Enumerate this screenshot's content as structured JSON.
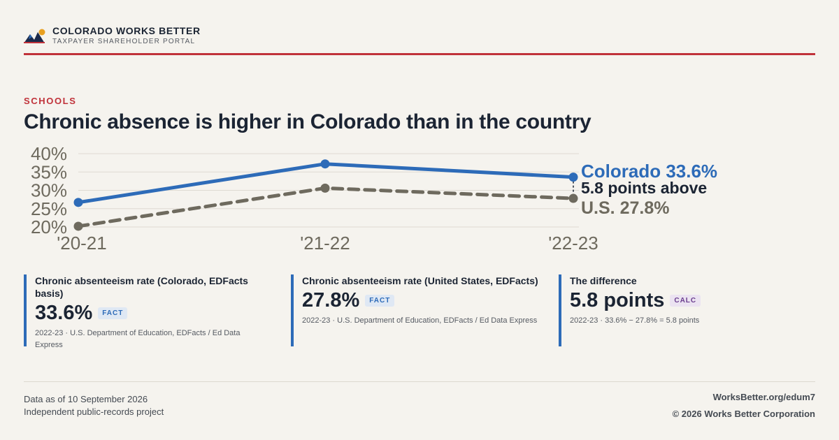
{
  "brand": {
    "name": "COLORADO WORKS BETTER",
    "subtitle": "TAXPAYER SHAREHOLDER PORTAL",
    "colors": {
      "accent_red": "#c0323a",
      "logo_navy": "#1b2a4a",
      "logo_blue": "#2d6bb8",
      "logo_sun": "#e8a020"
    }
  },
  "kicker": "SCHOOLS",
  "headline": "Chronic absence is higher in Colorado than in the country",
  "chart_data": {
    "type": "line",
    "categories": [
      "'20-21",
      "'21-22",
      "'22-23"
    ],
    "ylim": [
      20,
      40
    ],
    "y_ticks": [
      40,
      35,
      30,
      25,
      20
    ],
    "y_tick_labels": [
      "40%",
      "35%",
      "30%",
      "25%",
      "20%"
    ],
    "grid": true,
    "series": [
      {
        "name": "Colorado",
        "values": [
          26.7,
          37.2,
          33.6
        ],
        "color": "#2d6bb8",
        "style": "solid"
      },
      {
        "name": "U.S.",
        "values": [
          20.2,
          30.6,
          27.8
        ],
        "color": "#6e6a5e",
        "style": "dashed"
      }
    ],
    "end_labels": {
      "colorado": "Colorado 33.6%",
      "difference": "5.8 points above",
      "us": "U.S. 27.8%"
    }
  },
  "cards": [
    {
      "label": "Chronic absenteeism rate (Colorado, EDFacts basis)",
      "value": "33.6%",
      "badge": "FACT",
      "source": "2022-23 · U.S. Department of Education, EDFacts / Ed Data Express"
    },
    {
      "label": "Chronic absenteeism rate (United States, EDFacts)",
      "value": "27.8%",
      "badge": "FACT",
      "source": "2022-23 · U.S. Department of Education, EDFacts / Ed Data Express"
    },
    {
      "label": "The difference",
      "value": "5.8 points",
      "badge": "CALC",
      "source": "2022-23 · 33.6% − 27.8% = 5.8 points"
    }
  ],
  "footer": {
    "as_of": "Data as of 10 September 2026",
    "project": "Independent public-records project",
    "url": "WorksBetter.org/edum7",
    "copyright": "© 2026 Works Better Corporation"
  }
}
